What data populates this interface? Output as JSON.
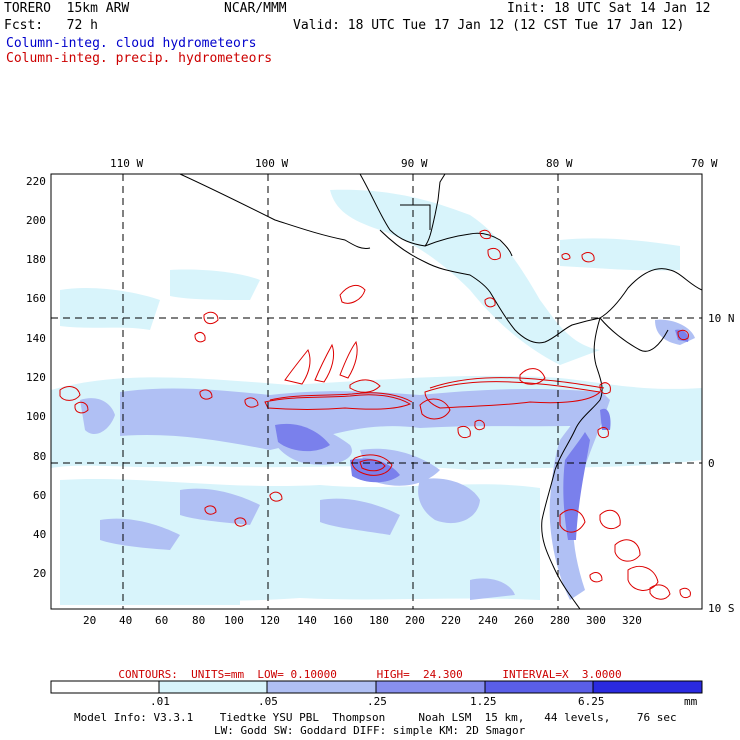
{
  "header": {
    "model": "TORERO  15km ARW",
    "org": "NCAR/MMM",
    "init": "Init: 18 UTC Sat 14 Jan 12",
    "fcst": "Fcst:   72 h",
    "valid": "Valid: 18 UTC Tue 17 Jan 12 (12 CST Tue 17 Jan 12)",
    "field_blue": "Column-integ. cloud hydrometeors",
    "field_red": "Column-integ. precip. hydrometeors"
  },
  "map": {
    "lon_labels": [
      "110 W",
      "100 W",
      "90 W",
      "80 W",
      "70 W"
    ],
    "lat_labels": [
      "10 N",
      "0",
      "10 S"
    ],
    "y_ticks": [
      "220",
      "200",
      "180",
      "160",
      "140",
      "120",
      "100",
      "80",
      "60",
      "40",
      "20"
    ],
    "x_ticks": [
      "20",
      "40",
      "60",
      "80",
      "100",
      "120",
      "140",
      "160",
      "180",
      "200",
      "220",
      "240",
      "260",
      "280",
      "300",
      "320"
    ],
    "land_line_color": "#000000",
    "contour_color": "#dd0000"
  },
  "contours_text": "CONTOURS:  UNITS=mm  LOW= 0.10000      HIGH=  24.300      INTERVAL=X  3.0000",
  "colorbar": {
    "labels": [
      ".01",
      ".05",
      ".25",
      "1.25",
      "6.25"
    ],
    "unit": "mm",
    "colors": [
      "#ffffff",
      "#d8f4fb",
      "#b0c0f4",
      "#8890ee",
      "#5a5ee8",
      "#2a2ae0"
    ]
  },
  "footer": {
    "line1": "Model Info: V3.3.1    Tiedtke YSU PBL  Thompson     Noah LSM  15 km,   44 levels,    76 sec",
    "line2": "LW: Godd SW: Goddard DIFF: simple KM: 2D Smagor"
  }
}
